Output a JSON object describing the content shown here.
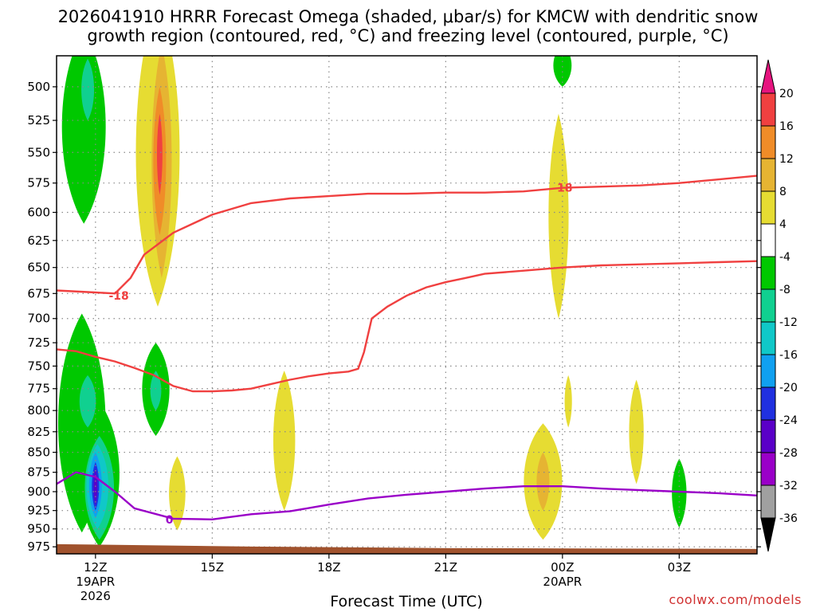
{
  "chart_data": {
    "type": "heatmap",
    "title_line1": "2026041910 HRRR Forecast Omega (shaded, μbar/s) for KMCW with dendritic snow",
    "title_line2": "growth region (contoured, red, °C) and freezing level (contoured, purple, °C)",
    "xlabel": "Forecast Time (UTC)",
    "ylabel": "",
    "x_unit": "hours from 2026-04-19 10Z",
    "xlim": [
      0,
      36
    ],
    "ylim": [
      985,
      478
    ],
    "y_scale": "log-pressure (inverted)",
    "x_ticks": [
      {
        "hour": 2,
        "label": "12Z",
        "sub1": "19APR",
        "sub2": "2026"
      },
      {
        "hour": 8,
        "label": "15Z",
        "sub1": "",
        "sub2": ""
      },
      {
        "hour": 14,
        "label": "18Z",
        "sub1": "",
        "sub2": ""
      },
      {
        "hour": 20,
        "label": "21Z",
        "sub1": "",
        "sub2": ""
      },
      {
        "hour": 26,
        "label": "00Z",
        "sub1": "20APR",
        "sub2": ""
      },
      {
        "hour": 32,
        "label": "03Z",
        "sub1": "",
        "sub2": ""
      }
    ],
    "y_ticks": [
      500,
      525,
      550,
      575,
      600,
      625,
      650,
      675,
      700,
      725,
      750,
      775,
      800,
      825,
      850,
      875,
      900,
      925,
      950,
      975
    ],
    "grid": true,
    "colorbar": {
      "levels": [
        -36,
        -32,
        -28,
        -24,
        -20,
        -16,
        -12,
        -8,
        -4,
        4,
        8,
        12,
        16,
        20
      ],
      "labels": [
        "-36",
        "-32",
        "-28",
        "-24",
        "-20",
        "-16",
        "-12",
        "-8",
        "-4",
        "4",
        "8",
        "12",
        "16",
        "20"
      ],
      "colors": [
        "#000000",
        "#a0a0a0",
        "#9a00c8",
        "#5a00c8",
        "#2030e0",
        "#10a0f0",
        "#10c8c8",
        "#10d090",
        "#00c800",
        "#ffffff",
        "#e6dc32",
        "#e6b432",
        "#f08c28",
        "#f04040",
        "#e6147f"
      ],
      "colors_note": "below -36 to above 20"
    },
    "series": [
      {
        "name": "-18",
        "color": "#f04040",
        "points": [
          [
            0,
            672
          ],
          [
            2,
            674
          ],
          [
            3,
            675
          ],
          [
            3.8,
            660
          ],
          [
            4.5,
            638
          ],
          [
            6,
            618
          ],
          [
            8,
            602
          ],
          [
            10,
            592
          ],
          [
            12,
            588
          ],
          [
            14,
            586
          ],
          [
            16,
            584
          ],
          [
            18,
            584
          ],
          [
            20,
            583
          ],
          [
            22,
            583
          ],
          [
            24,
            582
          ],
          [
            26,
            579
          ],
          [
            28,
            578
          ],
          [
            30,
            577
          ],
          [
            32,
            575
          ],
          [
            34,
            572
          ],
          [
            36,
            569
          ]
        ],
        "label_at": [
          26,
          579
        ]
      },
      {
        "name": "-18",
        "color": "#f04040",
        "points": [
          [
            0,
            732
          ],
          [
            1,
            734
          ],
          [
            2,
            740
          ],
          [
            3,
            745
          ],
          [
            4,
            752
          ],
          [
            5,
            760
          ],
          [
            6,
            772
          ],
          [
            7,
            778
          ],
          [
            8,
            778
          ],
          [
            9,
            777
          ],
          [
            10,
            775
          ],
          [
            11,
            770
          ],
          [
            12,
            765
          ],
          [
            13,
            761
          ],
          [
            14,
            758
          ],
          [
            15,
            756
          ],
          [
            15.5,
            753
          ],
          [
            15.8,
            735
          ],
          [
            16.2,
            700
          ],
          [
            17,
            688
          ],
          [
            18,
            677
          ],
          [
            19,
            669
          ],
          [
            20,
            664
          ],
          [
            21,
            660
          ],
          [
            22,
            656
          ],
          [
            24,
            653
          ],
          [
            26,
            650
          ],
          [
            28,
            648
          ],
          [
            30,
            647
          ],
          [
            32,
            646
          ],
          [
            34,
            645
          ],
          [
            36,
            644
          ]
        ]
      },
      {
        "name": "-18",
        "color": "#f04040",
        "points": [],
        "label_at": [
          3.2,
          677
        ],
        "note": "label on upper contour near 13Z"
      },
      {
        "name": "0",
        "color": "#9a00c8",
        "points": [
          [
            0,
            890
          ],
          [
            1,
            875
          ],
          [
            2,
            881
          ],
          [
            3,
            900
          ],
          [
            4,
            922
          ],
          [
            6,
            936
          ],
          [
            8,
            937
          ],
          [
            10,
            930
          ],
          [
            12,
            926
          ],
          [
            14,
            917
          ],
          [
            16,
            909
          ],
          [
            18,
            904
          ],
          [
            20,
            900
          ],
          [
            22,
            896
          ],
          [
            24,
            893
          ],
          [
            26,
            893
          ],
          [
            28,
            896
          ],
          [
            30,
            898
          ],
          [
            32,
            900
          ],
          [
            34,
            902
          ],
          [
            36,
            905
          ]
        ],
        "label_at": [
          5.8,
          937
        ]
      }
    ],
    "annotations": [
      "-18",
      "-18",
      "0"
    ],
    "ground_pressure": 978
  },
  "credit": "coolwx.com/models"
}
